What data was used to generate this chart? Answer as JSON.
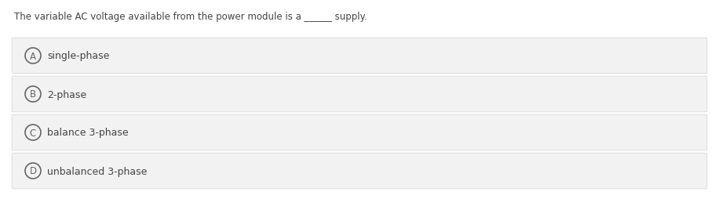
{
  "question": "The variable AC voltage available from the power module is a ______ supply.",
  "options": [
    {
      "label": "A",
      "text": "single-phase"
    },
    {
      "label": "B",
      "text": "2-phase"
    },
    {
      "label": "C",
      "text": "balance 3-phase"
    },
    {
      "label": "D",
      "text": "unbalanced 3-phase"
    }
  ],
  "bg_color": "#ffffff",
  "option_bg_color": "#f2f2f2",
  "option_border_color": "#d8d8d8",
  "text_color": "#444444",
  "circle_edge_color": "#666666",
  "question_fontsize": 8.5,
  "option_fontsize": 9.0,
  "label_fontsize": 8.5,
  "fig_width": 9.16,
  "fig_height": 2.55,
  "dpi": 100
}
